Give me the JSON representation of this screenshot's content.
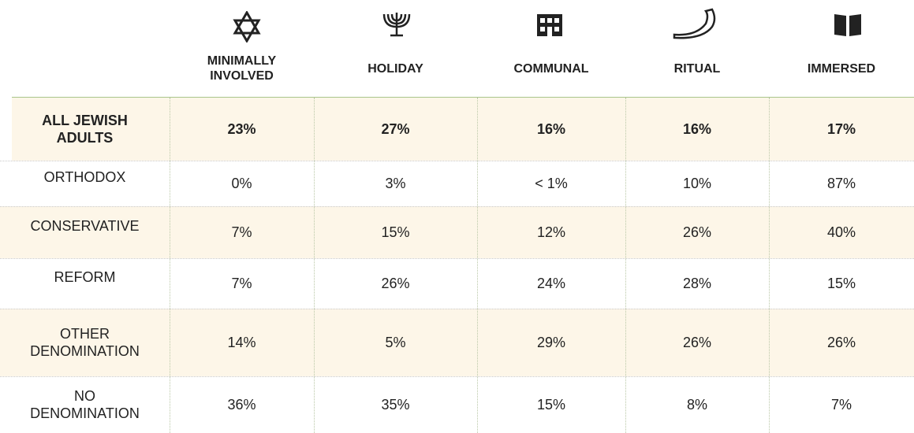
{
  "table": {
    "columns": [
      "MINIMALLY INVOLVED",
      "HOLIDAY",
      "COMMUNAL",
      "RITUAL",
      "IMMERSED"
    ],
    "rows": [
      [
        "ALL JEWISH ADULTS",
        "23%",
        "27%",
        "16%",
        "16%",
        "17%"
      ],
      [
        "ORTHODOX",
        "0%",
        "3%",
        "< 1%",
        "10%",
        "87%"
      ],
      [
        "CONSERVATIVE",
        "7%",
        "15%",
        "12%",
        "26%",
        "40%"
      ],
      [
        "REFORM",
        "7%",
        "26%",
        "24%",
        "28%",
        "15%"
      ],
      [
        "OTHER DENOMINATION",
        "14%",
        "5%",
        "29%",
        "26%",
        "26%"
      ],
      [
        "NO DENOMINATION",
        "36%",
        "35%",
        "15%",
        "8%",
        "7%"
      ]
    ]
  }
}
